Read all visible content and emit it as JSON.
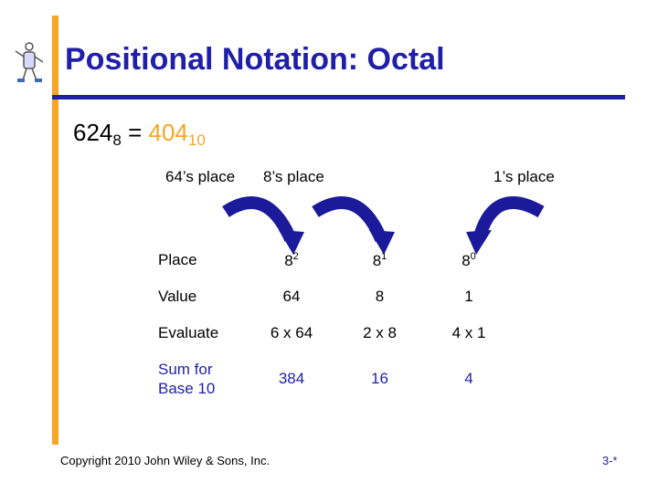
{
  "title": "Positional Notation:  Octal",
  "equation": {
    "lhs_base_number": "624",
    "lhs_base": "8",
    "equals": "=",
    "rhs_number": "404",
    "rhs_base": "10"
  },
  "place_labels": [
    "64’s place",
    "8’s place",
    "1’s place"
  ],
  "table": {
    "rows": [
      {
        "label": "Place",
        "cells": [
          {
            "base": "8",
            "exp": "2"
          },
          {
            "base": "8",
            "exp": "1"
          },
          {
            "base": "8",
            "exp": "0"
          }
        ]
      },
      {
        "label": "Value",
        "cells": [
          "64",
          "8",
          "1"
        ]
      },
      {
        "label": "Evaluate",
        "cells": [
          "6 x 64",
          "2 x 8",
          "4 x 1"
        ]
      },
      {
        "label_line1": "Sum for",
        "label_line2": "Base 10",
        "cells": [
          "384",
          "16",
          "4"
        ]
      }
    ]
  },
  "footer": {
    "copyright": "Copyright 2010 John Wiley & Sons, Inc.",
    "page": "3-*"
  },
  "colors": {
    "accent_orange": "#f5a623",
    "title_blue": "#1f1fa8",
    "arrow_blue": "#1f1fa8",
    "sum_row_color": "#1f1fa8"
  },
  "icons": [
    "figure-logo-icon",
    "curved-arrow-icon"
  ]
}
